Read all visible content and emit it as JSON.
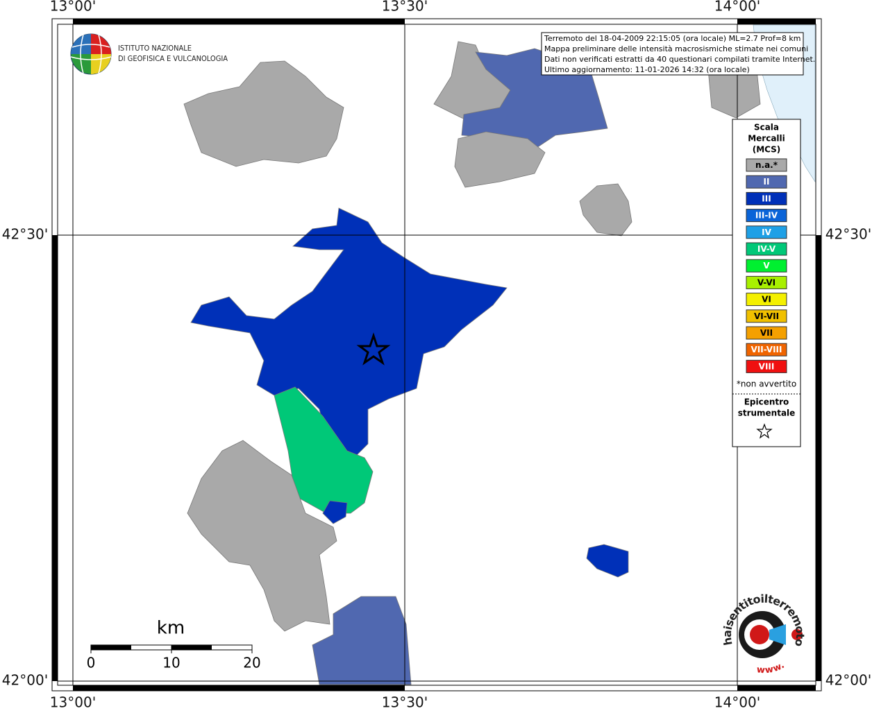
{
  "map": {
    "lon_labels": [
      "13°00'",
      "13°30'",
      "14°00'"
    ],
    "lat_labels": [
      "42°30'",
      "42°00'"
    ],
    "info": [
      "Terremoto del 18-04-2009 22:15:05 (ora locale) ML=2.7 Prof=8 km",
      "Mappa preliminare delle intensità macrosismiche stimate nei comuni",
      "Dati non verificati estratti da 40 questionari compilati tramite Internet.",
      "Ultimo aggiornamento: 11-01-2026 14:32 (ora locale)"
    ],
    "institute": [
      "ISTITUTO NAZIONALE",
      "DI GEOFISICA E VULCANOLOGIA"
    ],
    "legend": {
      "title": [
        "Scala",
        "Mercalli",
        "(MCS)"
      ],
      "items": [
        {
          "label": "n.a.*",
          "color": "#a9a9a9"
        },
        {
          "label": "II",
          "color": "#5068b0"
        },
        {
          "label": "III",
          "color": "#0030b8"
        },
        {
          "label": "III-IV",
          "color": "#0a64d8"
        },
        {
          "label": "IV",
          "color": "#1ea0e6"
        },
        {
          "label": "IV-V",
          "color": "#00c878"
        },
        {
          "label": "V",
          "color": "#00f030"
        },
        {
          "label": "V-VI",
          "color": "#a8f000"
        },
        {
          "label": "VI",
          "color": "#f4f000"
        },
        {
          "label": "VI-VII",
          "color": "#f0c000"
        },
        {
          "label": "VII",
          "color": "#f4a000"
        },
        {
          "label": "VII-VIII",
          "color": "#f06400"
        },
        {
          "label": "VIII",
          "color": "#f01010"
        }
      ],
      "note": "*non avvertito",
      "epicenter": [
        "Epicentro",
        "strumentale"
      ]
    },
    "scale_bar": {
      "unit": "km",
      "ticks": [
        0,
        10,
        20
      ]
    },
    "watermark": "haisentitoilterremoto.it",
    "watermark_url": "www."
  }
}
